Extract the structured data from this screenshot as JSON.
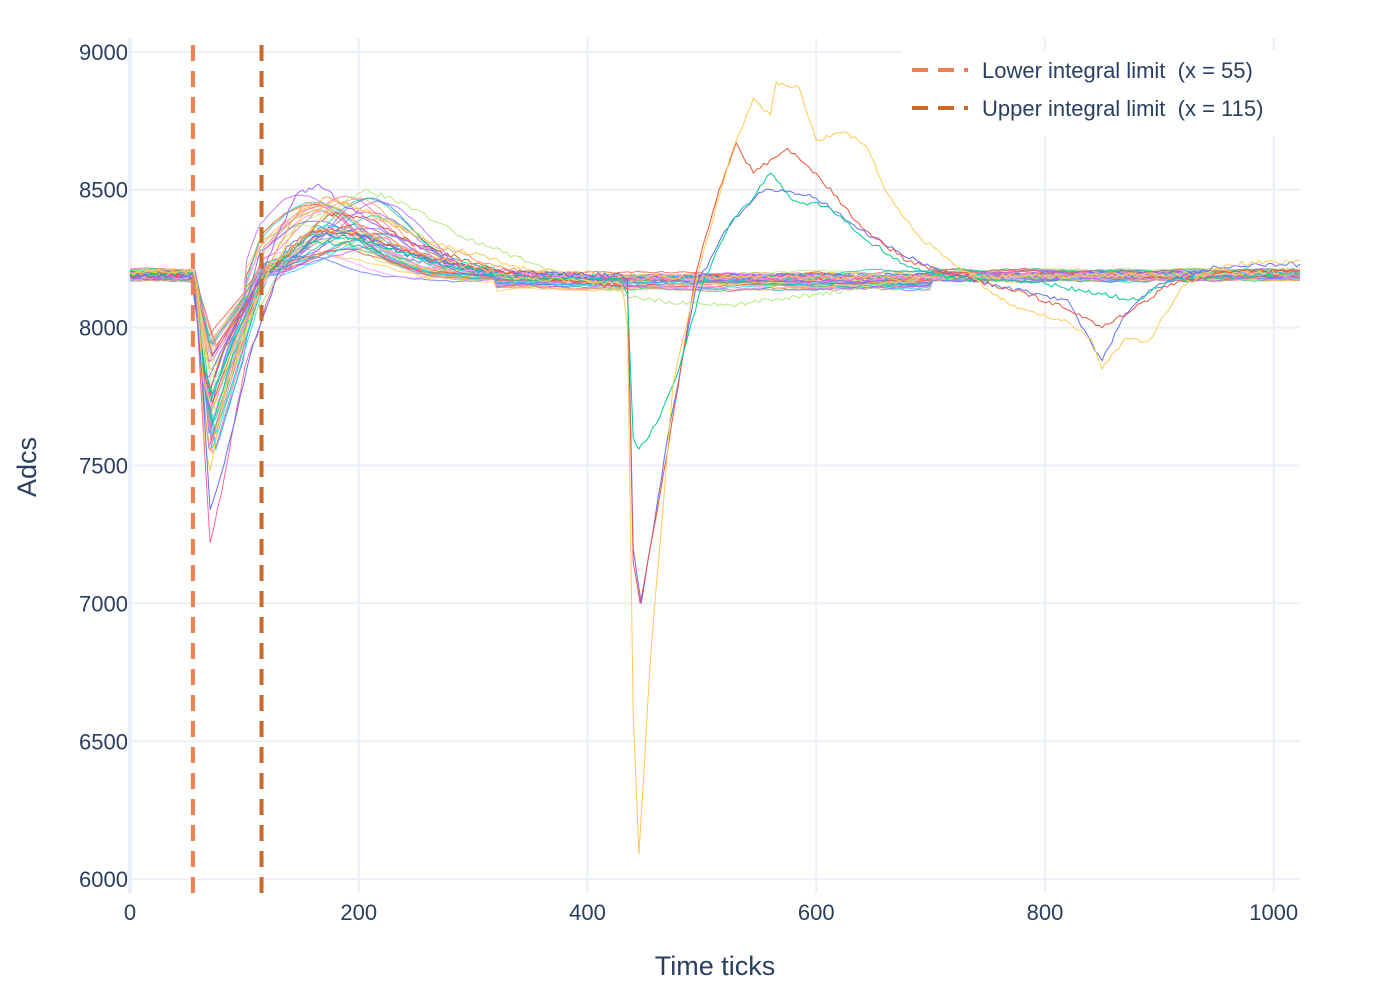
{
  "chart_data": {
    "type": "line",
    "title": "",
    "xlabel": "Time ticks",
    "ylabel": "Adcs",
    "xlim": [
      0,
      1023
    ],
    "ylim": [
      5950,
      9050
    ],
    "x_ticks": [
      0,
      200,
      400,
      600,
      800,
      1000
    ],
    "x_tick_labels": [
      "0",
      "200",
      "400",
      "600",
      "800",
      "1000"
    ],
    "y_ticks": [
      6000,
      6500,
      7000,
      7500,
      8000,
      8500,
      9000
    ],
    "y_tick_labels": [
      "6000",
      "6500",
      "7000",
      "7500",
      "8000",
      "8500",
      "9000"
    ],
    "grid": true,
    "legend_position": "top-right",
    "vlines": [
      {
        "name": "Lower integral limit  (x = 55)",
        "x": 55,
        "color": "#EF7F54",
        "dash": "dashed"
      },
      {
        "name": "Upper integral limit  (x = 115)",
        "x": 115,
        "color": "#C96A2A",
        "dash": "dashed"
      }
    ],
    "baseline": 8190,
    "series": [
      {
        "color": "#636EFA",
        "points": [
          [
            0,
            8190
          ],
          [
            50,
            8195
          ],
          [
            55,
            8170
          ],
          [
            62,
            7900
          ],
          [
            70,
            7780
          ],
          [
            85,
            7950
          ],
          [
            110,
            8150
          ],
          [
            140,
            8300
          ],
          [
            165,
            8360
          ],
          [
            200,
            8340
          ],
          [
            240,
            8270
          ],
          [
            300,
            8200
          ],
          [
            400,
            8180
          ],
          [
            500,
            8185
          ],
          [
            700,
            8190
          ],
          [
            900,
            8195
          ],
          [
            1023,
            8195
          ]
        ]
      },
      {
        "color": "#EF553B",
        "points": [
          [
            0,
            8185
          ],
          [
            52,
            8190
          ],
          [
            56,
            8160
          ],
          [
            62,
            7880
          ],
          [
            68,
            7750
          ],
          [
            80,
            7900
          ],
          [
            110,
            8150
          ],
          [
            150,
            8330
          ],
          [
            180,
            8420
          ],
          [
            210,
            8390
          ],
          [
            250,
            8300
          ],
          [
            320,
            8210
          ],
          [
            400,
            8175
          ],
          [
            600,
            8180
          ],
          [
            800,
            8190
          ],
          [
            1023,
            8190
          ]
        ]
      },
      {
        "color": "#00CC96",
        "points": [
          [
            0,
            8195
          ],
          [
            54,
            8200
          ],
          [
            57,
            8150
          ],
          [
            63,
            7820
          ],
          [
            72,
            7650
          ],
          [
            90,
            7900
          ],
          [
            120,
            8180
          ],
          [
            160,
            8310
          ],
          [
            200,
            8300
          ],
          [
            250,
            8240
          ],
          [
            330,
            8190
          ],
          [
            500,
            8180
          ],
          [
            700,
            8185
          ],
          [
            900,
            8190
          ],
          [
            1023,
            8200
          ]
        ]
      },
      {
        "color": "#AB63FA",
        "points": [
          [
            0,
            8180
          ],
          [
            55,
            8185
          ],
          [
            58,
            8140
          ],
          [
            64,
            7800
          ],
          [
            70,
            7700
          ],
          [
            85,
            7920
          ],
          [
            115,
            8200
          ],
          [
            145,
            8480
          ],
          [
            165,
            8520
          ],
          [
            185,
            8450
          ],
          [
            230,
            8330
          ],
          [
            300,
            8220
          ],
          [
            420,
            8170
          ],
          [
            600,
            8175
          ],
          [
            850,
            8185
          ],
          [
            1023,
            8195
          ]
        ]
      },
      {
        "color": "#FFA15A",
        "points": [
          [
            0,
            8200
          ],
          [
            53,
            8205
          ],
          [
            57,
            8170
          ],
          [
            63,
            7750
          ],
          [
            70,
            7550
          ],
          [
            88,
            7850
          ],
          [
            120,
            8220
          ],
          [
            150,
            8440
          ],
          [
            175,
            8470
          ],
          [
            205,
            8420
          ],
          [
            260,
            8310
          ],
          [
            330,
            8210
          ],
          [
            450,
            8175
          ],
          [
            650,
            8180
          ],
          [
            850,
            8190
          ],
          [
            1023,
            8195
          ]
        ]
      },
      {
        "color": "#19D3F3",
        "points": [
          [
            0,
            8190
          ],
          [
            55,
            8195
          ],
          [
            58,
            8150
          ],
          [
            64,
            7850
          ],
          [
            72,
            7750
          ],
          [
            90,
            7960
          ],
          [
            125,
            8230
          ],
          [
            165,
            8370
          ],
          [
            205,
            8340
          ],
          [
            260,
            8250
          ],
          [
            330,
            8190
          ],
          [
            500,
            8180
          ],
          [
            700,
            8185
          ],
          [
            900,
            8190
          ],
          [
            1023,
            8195
          ]
        ]
      },
      {
        "color": "#FF6692",
        "points": [
          [
            0,
            8185
          ],
          [
            54,
            8190
          ],
          [
            57,
            8160
          ],
          [
            63,
            7700
          ],
          [
            70,
            7220
          ],
          [
            80,
            7400
          ],
          [
            100,
            7850
          ],
          [
            125,
            8150
          ],
          [
            165,
            8350
          ],
          [
            200,
            8360
          ],
          [
            250,
            8270
          ],
          [
            320,
            8200
          ],
          [
            450,
            8180
          ],
          [
            650,
            8185
          ],
          [
            900,
            8190
          ],
          [
            1023,
            8190
          ]
        ]
      },
      {
        "color": "#B6E880",
        "points": [
          [
            0,
            8195
          ],
          [
            56,
            8200
          ],
          [
            59,
            8150
          ],
          [
            65,
            7900
          ],
          [
            75,
            7800
          ],
          [
            95,
            7950
          ],
          [
            130,
            8200
          ],
          [
            175,
            8420
          ],
          [
            205,
            8500
          ],
          [
            240,
            8450
          ],
          [
            290,
            8330
          ],
          [
            360,
            8220
          ],
          [
            450,
            8100
          ],
          [
            520,
            8080
          ],
          [
            600,
            8120
          ],
          [
            700,
            8180
          ],
          [
            900,
            8190
          ],
          [
            1023,
            8200
          ]
        ]
      },
      {
        "color": "#FF97FF",
        "points": [
          [
            0,
            8180
          ],
          [
            55,
            8185
          ],
          [
            58,
            8140
          ],
          [
            64,
            7820
          ],
          [
            72,
            7700
          ],
          [
            90,
            7920
          ],
          [
            120,
            8180
          ],
          [
            160,
            8340
          ],
          [
            200,
            8320
          ],
          [
            250,
            8240
          ],
          [
            330,
            8190
          ],
          [
            500,
            8180
          ],
          [
            700,
            8185
          ],
          [
            900,
            8190
          ],
          [
            1023,
            8195
          ]
        ]
      },
      {
        "color": "#FECB52",
        "points": [
          [
            0,
            8200
          ],
          [
            55,
            8205
          ],
          [
            59,
            8150
          ],
          [
            65,
            7600
          ],
          [
            70,
            7480
          ],
          [
            85,
            7800
          ],
          [
            115,
            8150
          ],
          [
            150,
            8400
          ],
          [
            180,
            8460
          ],
          [
            210,
            8420
          ],
          [
            270,
            8300
          ],
          [
            350,
            8210
          ],
          [
            480,
            8180
          ],
          [
            700,
            8185
          ],
          [
            900,
            8190
          ],
          [
            1023,
            8200
          ]
        ]
      },
      {
        "color": "#636EFA",
        "points": [
          [
            0,
            8185
          ],
          [
            52,
            8190
          ],
          [
            56,
            8150
          ],
          [
            63,
            7820
          ],
          [
            70,
            7340
          ],
          [
            82,
            7500
          ],
          [
            105,
            7900
          ],
          [
            130,
            8200
          ],
          [
            160,
            8330
          ],
          [
            190,
            8350
          ],
          [
            240,
            8270
          ],
          [
            320,
            8200
          ],
          [
            430,
            8190
          ],
          [
            435,
            8170
          ],
          [
            440,
            7200
          ],
          [
            447,
            7000
          ],
          [
            470,
            7600
          ],
          [
            495,
            8150
          ],
          [
            520,
            8350
          ],
          [
            550,
            8490
          ],
          [
            570,
            8500
          ],
          [
            600,
            8470
          ],
          [
            630,
            8380
          ],
          [
            660,
            8300
          ],
          [
            700,
            8220
          ],
          [
            760,
            8150
          ],
          [
            820,
            8100
          ],
          [
            840,
            7950
          ],
          [
            850,
            7880
          ],
          [
            870,
            8050
          ],
          [
            900,
            8160
          ],
          [
            950,
            8220
          ],
          [
            1023,
            8230
          ]
        ]
      },
      {
        "color": "#EF553B",
        "points": [
          [
            0,
            8190
          ],
          [
            54,
            8195
          ],
          [
            58,
            8160
          ],
          [
            64,
            7850
          ],
          [
            72,
            7730
          ],
          [
            90,
            7930
          ],
          [
            120,
            8200
          ],
          [
            160,
            8350
          ],
          [
            200,
            8340
          ],
          [
            260,
            8250
          ],
          [
            340,
            8190
          ],
          [
            430,
            8150
          ],
          [
            435,
            8140
          ],
          [
            440,
            7150
          ],
          [
            446,
            7000
          ],
          [
            470,
            7550
          ],
          [
            495,
            8200
          ],
          [
            515,
            8500
          ],
          [
            530,
            8670
          ],
          [
            545,
            8560
          ],
          [
            575,
            8650
          ],
          [
            600,
            8560
          ],
          [
            640,
            8360
          ],
          [
            680,
            8240
          ],
          [
            720,
            8190
          ],
          [
            780,
            8130
          ],
          [
            830,
            8050
          ],
          [
            850,
            8000
          ],
          [
            875,
            8060
          ],
          [
            910,
            8160
          ],
          [
            960,
            8200
          ],
          [
            1023,
            8210
          ]
        ]
      },
      {
        "color": "#00CC96",
        "points": [
          [
            0,
            8195
          ],
          [
            55,
            8200
          ],
          [
            58,
            8150
          ],
          [
            64,
            7860
          ],
          [
            72,
            7760
          ],
          [
            90,
            7950
          ],
          [
            120,
            8200
          ],
          [
            160,
            8340
          ],
          [
            200,
            8320
          ],
          [
            260,
            8240
          ],
          [
            340,
            8180
          ],
          [
            430,
            8170
          ],
          [
            435,
            8120
          ],
          [
            440,
            7600
          ],
          [
            445,
            7560
          ],
          [
            460,
            7650
          ],
          [
            480,
            7850
          ],
          [
            500,
            8150
          ],
          [
            525,
            8380
          ],
          [
            545,
            8470
          ],
          [
            560,
            8560
          ],
          [
            580,
            8460
          ],
          [
            610,
            8440
          ],
          [
            640,
            8330
          ],
          [
            680,
            8220
          ],
          [
            720,
            8180
          ],
          [
            800,
            8160
          ],
          [
            850,
            8120
          ],
          [
            880,
            8100
          ],
          [
            910,
            8170
          ],
          [
            1023,
            8200
          ]
        ]
      },
      {
        "color": "#FECB52",
        "points": [
          [
            0,
            8200
          ],
          [
            55,
            8205
          ],
          [
            58,
            8160
          ],
          [
            64,
            7800
          ],
          [
            72,
            7700
          ],
          [
            90,
            7930
          ],
          [
            120,
            8200
          ],
          [
            160,
            8360
          ],
          [
            200,
            8350
          ],
          [
            260,
            8260
          ],
          [
            340,
            8180
          ],
          [
            430,
            8160
          ],
          [
            435,
            8000
          ],
          [
            440,
            6600
          ],
          [
            445,
            6090
          ],
          [
            455,
            6800
          ],
          [
            475,
            7800
          ],
          [
            500,
            8250
          ],
          [
            525,
            8620
          ],
          [
            545,
            8830
          ],
          [
            560,
            8770
          ],
          [
            565,
            8890
          ],
          [
            585,
            8870
          ],
          [
            600,
            8680
          ],
          [
            625,
            8710
          ],
          [
            645,
            8650
          ],
          [
            660,
            8500
          ],
          [
            690,
            8330
          ],
          [
            720,
            8230
          ],
          [
            770,
            8080
          ],
          [
            820,
            8020
          ],
          [
            840,
            7960
          ],
          [
            850,
            7850
          ],
          [
            870,
            7960
          ],
          [
            890,
            7950
          ],
          [
            920,
            8150
          ],
          [
            960,
            8230
          ],
          [
            1023,
            8240
          ]
        ]
      }
    ]
  }
}
